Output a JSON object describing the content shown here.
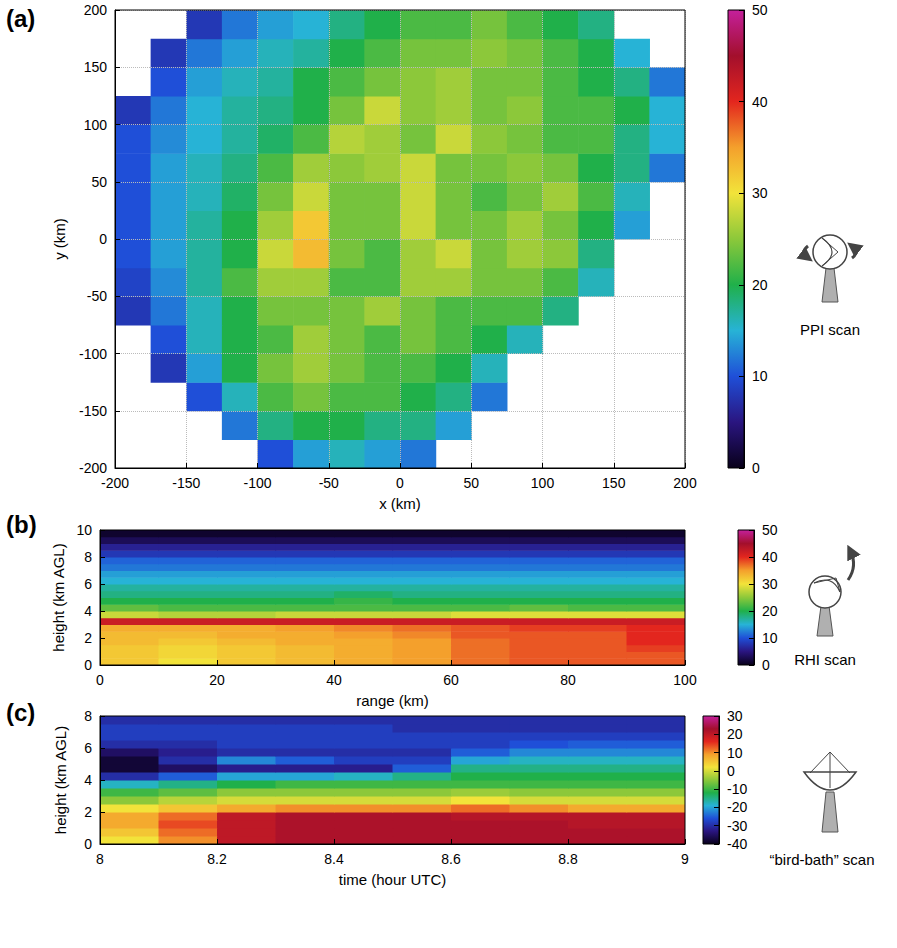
{
  "chart_data": [
    {
      "type": "heatmap",
      "panel": "(a)",
      "scan_label": "PPI scan",
      "x_label": "x (km)",
      "y_label": "y (km)",
      "xlim": [
        -200,
        200
      ],
      "xticks": [
        -200,
        -150,
        -100,
        -50,
        0,
        50,
        100,
        150,
        200
      ],
      "ylim": [
        -200,
        200
      ],
      "yticks": [
        -200,
        -150,
        -100,
        -50,
        0,
        50,
        100,
        150,
        200
      ],
      "grid": true,
      "colorbar_lim": [
        0,
        50
      ],
      "colorbar_ticks": [
        0,
        10,
        20,
        30,
        40,
        50
      ],
      "x_bins": [
        -200,
        -175,
        -150,
        -125,
        -100,
        -75,
        -50,
        -25,
        0,
        25,
        50,
        75,
        100,
        125,
        150,
        175,
        200
      ],
      "y_bins": [
        -200,
        -175,
        -150,
        -125,
        -100,
        -75,
        -50,
        -25,
        0,
        25,
        50,
        75,
        100,
        125,
        150,
        175,
        200
      ],
      "values": [
        [
          null,
          null,
          null,
          null,
          10,
          14,
          16,
          14,
          12,
          null,
          null,
          null,
          null,
          null,
          null,
          null
        ],
        [
          null,
          null,
          null,
          12,
          18,
          20,
          20,
          18,
          18,
          14,
          null,
          null,
          null,
          null,
          null,
          null
        ],
        [
          null,
          null,
          10,
          16,
          22,
          24,
          22,
          22,
          20,
          18,
          12,
          null,
          null,
          null,
          null,
          null
        ],
        [
          null,
          8,
          14,
          20,
          24,
          26,
          24,
          22,
          22,
          20,
          16,
          null,
          null,
          null,
          null,
          null
        ],
        [
          null,
          10,
          16,
          20,
          22,
          26,
          24,
          22,
          24,
          22,
          20,
          16,
          null,
          null,
          null,
          null
        ],
        [
          8,
          12,
          16,
          20,
          24,
          24,
          24,
          26,
          24,
          22,
          22,
          22,
          18,
          null,
          null,
          null
        ],
        [
          9,
          13,
          17,
          22,
          26,
          26,
          22,
          22,
          26,
          26,
          24,
          24,
          22,
          16,
          null,
          null
        ],
        [
          10,
          14,
          17,
          20,
          28,
          33,
          24,
          22,
          26,
          28,
          24,
          26,
          25,
          18,
          null,
          null
        ],
        [
          10,
          14,
          17,
          20,
          26,
          32,
          24,
          24,
          28,
          24,
          24,
          26,
          24,
          20,
          14,
          null
        ],
        [
          10,
          14,
          16,
          19,
          24,
          28,
          24,
          24,
          28,
          24,
          22,
          24,
          26,
          22,
          16,
          null
        ],
        [
          10,
          14,
          16,
          18,
          22,
          26,
          25,
          26,
          28,
          24,
          24,
          25,
          24,
          20,
          18,
          12
        ],
        [
          10,
          13,
          15,
          17,
          19,
          22,
          27,
          26,
          24,
          28,
          25,
          24,
          22,
          22,
          18,
          15
        ],
        [
          8,
          12,
          15,
          17,
          18,
          20,
          24,
          28,
          25,
          26,
          24,
          25,
          22,
          22,
          20,
          15
        ],
        [
          null,
          10,
          14,
          16,
          17,
          20,
          22,
          24,
          25,
          26,
          24,
          24,
          22,
          20,
          18,
          12
        ],
        [
          null,
          8,
          12,
          14,
          16,
          17,
          20,
          22,
          24,
          24,
          25,
          24,
          22,
          20,
          15,
          null
        ],
        [
          null,
          null,
          8,
          12,
          14,
          15,
          18,
          20,
          22,
          22,
          24,
          22,
          20,
          18,
          null,
          null
        ]
      ]
    },
    {
      "type": "heatmap",
      "panel": "(b)",
      "scan_label": "RHI scan",
      "x_label": "range (km)",
      "y_label": "height (km AGL)",
      "xlim": [
        0,
        100
      ],
      "xticks": [
        0,
        20,
        40,
        60,
        80,
        100
      ],
      "ylim": [
        0,
        10
      ],
      "yticks": [
        0,
        2,
        4,
        6,
        8,
        10
      ],
      "grid": false,
      "colorbar_lim": [
        0,
        50
      ],
      "colorbar_ticks": [
        0,
        10,
        20,
        30,
        40,
        50
      ],
      "x_bins": [
        0,
        10,
        20,
        30,
        40,
        50,
        60,
        70,
        80,
        90,
        100
      ],
      "y_bins": [
        0,
        0.5,
        1,
        1.5,
        2,
        2.5,
        3,
        3.5,
        4,
        4.5,
        5,
        5.5,
        6,
        6.5,
        7,
        7.5,
        8,
        8.5,
        9,
        9.5,
        10
      ],
      "values": [
        [
          32,
          30,
          32,
          33,
          34,
          35,
          37,
          38,
          38,
          38
        ],
        [
          32,
          31,
          32,
          33,
          34,
          35,
          37,
          38,
          38,
          38
        ],
        [
          32,
          31,
          32,
          33,
          34,
          35,
          37,
          38,
          38,
          39
        ],
        [
          33,
          32,
          33,
          34,
          34,
          35,
          37,
          38,
          38,
          40
        ],
        [
          33,
          33,
          34,
          34,
          35,
          36,
          38,
          38,
          38,
          40
        ],
        [
          34,
          34,
          34,
          35,
          36,
          37,
          38,
          39,
          39,
          40
        ],
        [
          42,
          42,
          42,
          42,
          42,
          42,
          42,
          42,
          42,
          42
        ],
        [
          28,
          27,
          27,
          28,
          28,
          28,
          29,
          29,
          29,
          29
        ],
        [
          23,
          22,
          22,
          22,
          22,
          22,
          22,
          23,
          22,
          22
        ],
        [
          20,
          20,
          20,
          20,
          21,
          20,
          20,
          20,
          20,
          20
        ],
        [
          18,
          18,
          18,
          18,
          19,
          18,
          18,
          18,
          18,
          18
        ],
        [
          17,
          17,
          17,
          17,
          17,
          17,
          17,
          17,
          17,
          17
        ],
        [
          15,
          15,
          15,
          15,
          15,
          15,
          15,
          15,
          15,
          15
        ],
        [
          14,
          14,
          14,
          14,
          14,
          14,
          14,
          14,
          14,
          14
        ],
        [
          12,
          12,
          12,
          12,
          12,
          12,
          12,
          12,
          12,
          12
        ],
        [
          11,
          11,
          11,
          11,
          11,
          11,
          11,
          11,
          11,
          11
        ],
        [
          8,
          8,
          8,
          8,
          8,
          8,
          8,
          8,
          8,
          8
        ],
        [
          6,
          6,
          6,
          6,
          6,
          6,
          6,
          6,
          6,
          6
        ],
        [
          3,
          3,
          3,
          3,
          3,
          3,
          3,
          3,
          3,
          3
        ],
        [
          1,
          1,
          1,
          1,
          1,
          1,
          1,
          1,
          1,
          1
        ]
      ]
    },
    {
      "type": "heatmap",
      "panel": "(c)",
      "scan_label": "“bird-bath” scan",
      "x_label": "time (hour UTC)",
      "y_label": "height (km AGL)",
      "xlim": [
        8,
        9
      ],
      "xticks": [
        8,
        8.2,
        8.4,
        8.6,
        8.8,
        9
      ],
      "ylim": [
        0,
        8
      ],
      "yticks": [
        0,
        2,
        4,
        6,
        8
      ],
      "grid": false,
      "colorbar_lim": [
        -40,
        30
      ],
      "colorbar_ticks": [
        -40,
        -30,
        -20,
        -10,
        0,
        10,
        20,
        30
      ],
      "x_bins": [
        8,
        8.1,
        8.2,
        8.3,
        8.4,
        8.5,
        8.6,
        8.7,
        8.8,
        8.9,
        9
      ],
      "y_bins": [
        0,
        0.5,
        1,
        1.5,
        2,
        2.5,
        3,
        3.5,
        4,
        4.5,
        5,
        5.5,
        6,
        6.5,
        7,
        7.5,
        8
      ],
      "values": [
        [
          2,
          10,
          20,
          22,
          22,
          22,
          22,
          22,
          22,
          22
        ],
        [
          5,
          12,
          20,
          22,
          22,
          22,
          22,
          22,
          22,
          22
        ],
        [
          8,
          14,
          20,
          22,
          22,
          22,
          22,
          22,
          21,
          21
        ],
        [
          8,
          12,
          20,
          22,
          22,
          22,
          21,
          21,
          21,
          21
        ],
        [
          2,
          5,
          8,
          10,
          10,
          10,
          12,
          10,
          8,
          8
        ],
        [
          -5,
          -2,
          0,
          0,
          0,
          0,
          2,
          0,
          0,
          0
        ],
        [
          -10,
          -8,
          -5,
          -5,
          -5,
          -5,
          -4,
          -5,
          -5,
          -5
        ],
        [
          -18,
          -15,
          -12,
          -10,
          -10,
          -10,
          -10,
          -10,
          -10,
          -10
        ],
        [
          -30,
          -25,
          -20,
          -20,
          -18,
          -15,
          -12,
          -12,
          -12,
          -12
        ],
        [
          -38,
          -35,
          -32,
          -32,
          -32,
          -25,
          -15,
          -15,
          -15,
          -15
        ],
        [
          -38,
          -30,
          -22,
          -25,
          -28,
          -28,
          -20,
          -18,
          -18,
          -18
        ],
        [
          -35,
          -32,
          -30,
          -30,
          -30,
          -30,
          -25,
          -22,
          -22,
          -22
        ],
        [
          -30,
          -30,
          -28,
          -28,
          -28,
          -28,
          -28,
          -26,
          -25,
          -25
        ],
        [
          -28,
          -28,
          -28,
          -28,
          -28,
          -28,
          -28,
          -28,
          -28,
          -28
        ],
        [
          -28,
          -28,
          -28,
          -28,
          -28,
          -30,
          -30,
          -30,
          -30,
          -30
        ],
        [
          -30,
          -30,
          -30,
          -30,
          -30,
          -30,
          -30,
          -30,
          -30,
          -30
        ]
      ]
    }
  ]
}
